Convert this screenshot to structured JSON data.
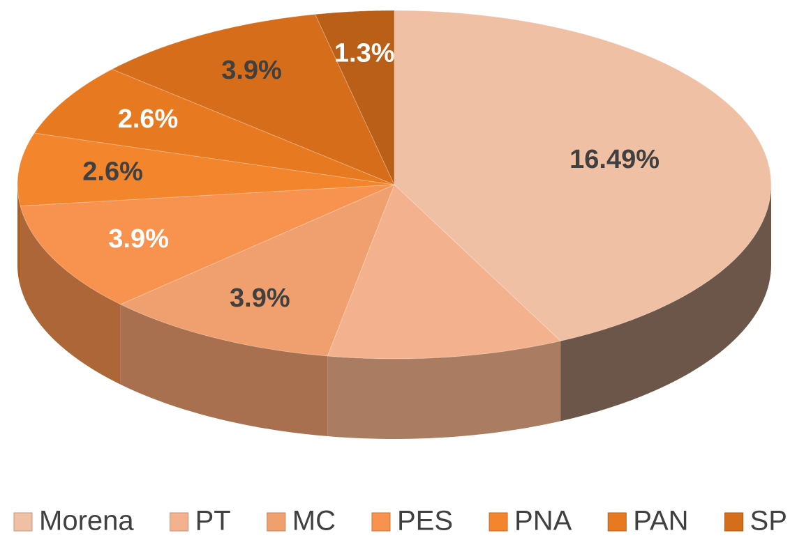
{
  "chart_data": {
    "type": "pie3d",
    "categories": [
      "Morena",
      "PT",
      "MC",
      "PES",
      "PNA",
      "PAN",
      "SP",
      null
    ],
    "values": [
      16.49,
      3.9,
      3.9,
      3.9,
      2.6,
      2.6,
      3.9,
      1.3
    ],
    "value_labels": [
      "16.49%",
      null,
      "3.9%",
      "3.9%",
      "2.6%",
      "2.6%",
      "3.9%",
      "1.3%"
    ],
    "colors": [
      "#efc0a4",
      "#f3b28d",
      "#f0a06f",
      "#f7924f",
      "#f3852c",
      "#e77a20",
      "#d66d1b",
      "#b95f18"
    ],
    "label_colors": [
      "#404040",
      "#404040",
      "#404040",
      "#ffffff",
      "#404040",
      "#ffffff",
      "#404040",
      "#ffffff"
    ],
    "legend": "bottom"
  }
}
